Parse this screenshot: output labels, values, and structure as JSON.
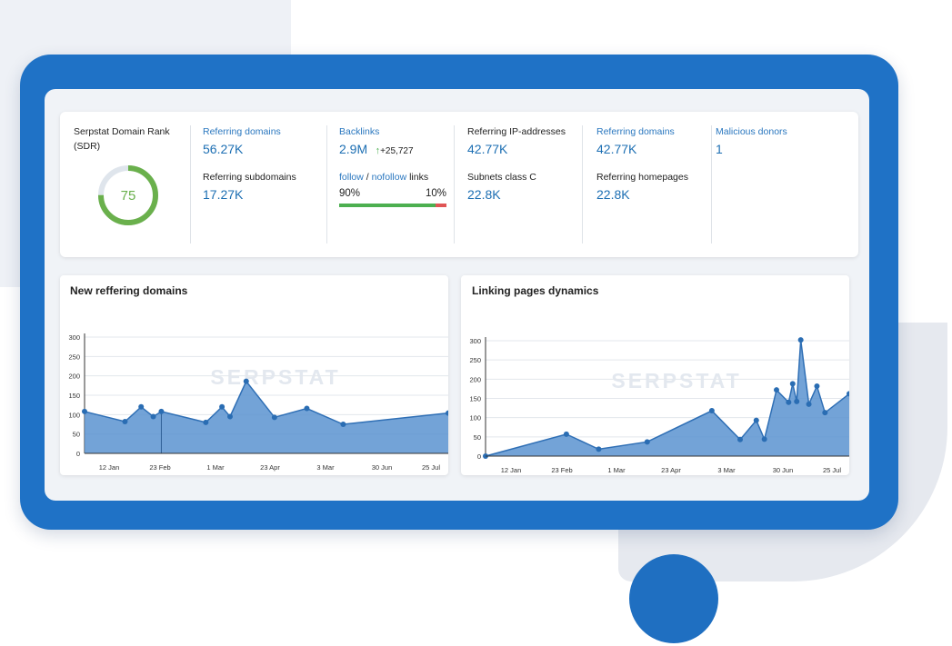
{
  "stats": {
    "domain_rank": {
      "label_line1": "Serpstat Domain Rank",
      "label_line2": "(SDR)",
      "value": "75",
      "fraction": 0.75
    },
    "referring_domains": {
      "label": "Referring domains",
      "value": "56.27K"
    },
    "referring_subdomains": {
      "label": "Referring subdomains",
      "value": "17.27K"
    },
    "backlinks": {
      "label": "Backlinks",
      "value": "2.9M",
      "delta_arrow": "↑",
      "delta": "+25,727"
    },
    "follow_links": {
      "follow": "follow",
      "separator": "/",
      "nofollow": "nofollow",
      "suffix": "links",
      "follow_pct": "90%",
      "nofollow_pct": "10%",
      "follow_fraction": 0.9
    },
    "referring_ips": {
      "label": "Referring IP-addresses",
      "value": "42.77K"
    },
    "subnets": {
      "label": "Subnets class C",
      "value": "22.8K"
    },
    "referring_domains_2": {
      "label": "Referring domains",
      "value": "42.77K"
    },
    "referring_homepages": {
      "label": "Referring homepages",
      "value": "22.8K"
    },
    "malicious_donors": {
      "label": "Malicious donors",
      "value": "1"
    }
  },
  "watermark": "SERPSTAT",
  "colors": {
    "frame": "#1f72c6",
    "accent_blue": "#2a77bf",
    "gauge_green": "#6ab04c",
    "chart_fill": "#5b93d0",
    "chart_line": "#2f6fb5",
    "nofollow_red": "#e05555"
  },
  "chart_data": [
    {
      "type": "area",
      "title": "New reffering domains",
      "x_ticks": [
        "12 Jan",
        "23 Feb",
        "1 Mar",
        "23 Apr",
        "3 Mar",
        "30 Jun",
        "25 Jul"
      ],
      "y_ticks": [
        0,
        50,
        100,
        150,
        200,
        250,
        300
      ],
      "ylim": [
        0,
        300
      ],
      "xlim": [
        0,
        45
      ],
      "points": [
        [
          0,
          108
        ],
        [
          5,
          82
        ],
        [
          7,
          120
        ],
        [
          8.5,
          95
        ],
        [
          9.5,
          108
        ],
        [
          15,
          80
        ],
        [
          17,
          120
        ],
        [
          18,
          95
        ],
        [
          20,
          186
        ],
        [
          23.5,
          93
        ],
        [
          27.5,
          116
        ],
        [
          32,
          75
        ],
        [
          45,
          104
        ]
      ],
      "marker_line_x": 9.5
    },
    {
      "type": "area",
      "title": "Linking pages dynamics",
      "x_ticks": [
        "12 Jan",
        "23 Feb",
        "1 Mar",
        "23 Apr",
        "3 Mar",
        "30 Jun",
        "25 Jul"
      ],
      "y_ticks": [
        0,
        50,
        100,
        150,
        200,
        250,
        300
      ],
      "ylim": [
        0,
        300
      ],
      "xlim": [
        0,
        45
      ],
      "points": [
        [
          0,
          0
        ],
        [
          10,
          57
        ],
        [
          14,
          18
        ],
        [
          20,
          37
        ],
        [
          28,
          118
        ],
        [
          31.5,
          43
        ],
        [
          33.5,
          93
        ],
        [
          34.5,
          44
        ],
        [
          36,
          172
        ],
        [
          37.5,
          140
        ],
        [
          38,
          188
        ],
        [
          38.5,
          142
        ],
        [
          39,
          302
        ],
        [
          40,
          135
        ],
        [
          41,
          182
        ],
        [
          42,
          113
        ],
        [
          45,
          162
        ]
      ]
    }
  ]
}
